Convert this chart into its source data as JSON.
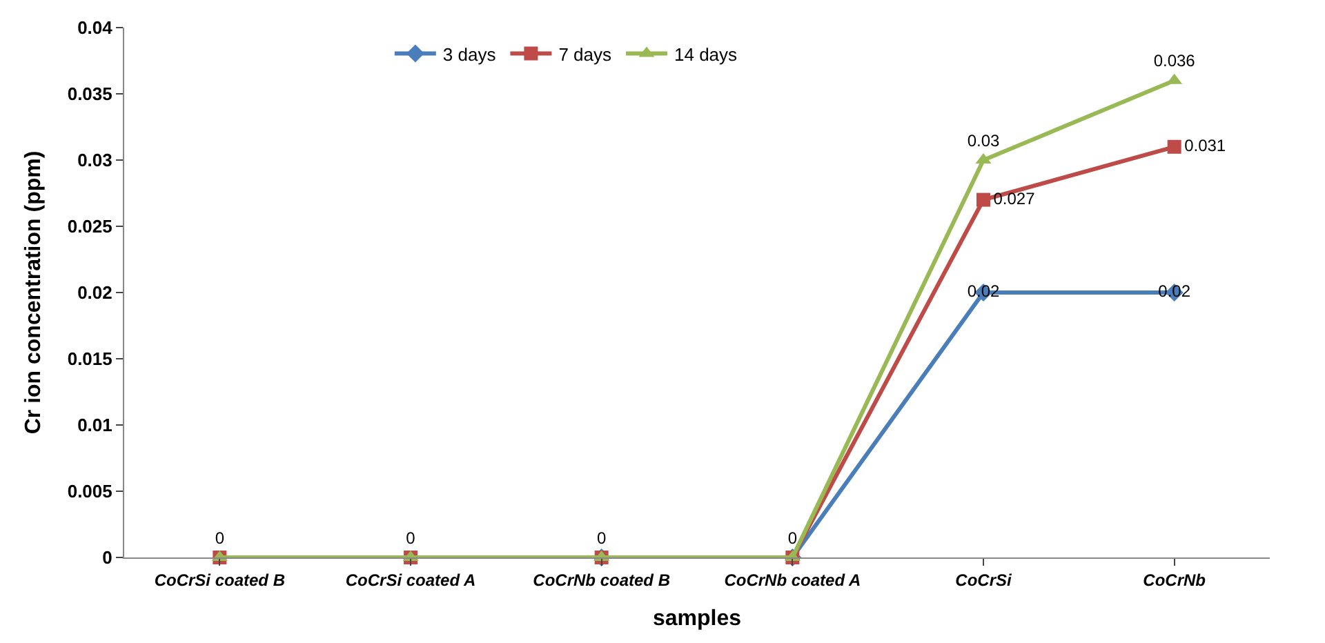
{
  "chart_data": {
    "type": "line",
    "xlabel": "samples",
    "ylabel": "Cr ion concentration (ppm)",
    "categories": [
      "CoCrSi coated B",
      "CoCrSi coated A",
      "CoCrNb coated B",
      "CoCrNb coated A",
      "CoCrSi",
      "CoCrNb"
    ],
    "series": [
      {
        "name": "3 days",
        "color": "#4a7ebb",
        "marker": "diamond",
        "values": [
          null,
          null,
          0,
          0,
          0.02,
          0.02
        ],
        "value_labels": [
          null,
          null,
          null,
          null,
          "0.02",
          "0.02"
        ]
      },
      {
        "name": "7 days",
        "color": "#be4b48",
        "marker": "square",
        "values": [
          0,
          0,
          0,
          0,
          0.027,
          0.031
        ],
        "value_labels": [
          null,
          null,
          null,
          null,
          "0.027",
          "0.031"
        ]
      },
      {
        "name": "14 days",
        "color": "#98b954",
        "marker": "triangle",
        "values": [
          0,
          0,
          0,
          0,
          0.03,
          0.036
        ],
        "value_labels": [
          "0",
          "0",
          "0",
          "0",
          "0.03",
          "0.036"
        ]
      }
    ],
    "ylim": [
      0,
      0.04
    ],
    "yticks": [
      0,
      0.005,
      0.01,
      0.015,
      0.02,
      0.025,
      0.03,
      0.035,
      0.04
    ],
    "legend": "top",
    "line_style": "solid"
  }
}
